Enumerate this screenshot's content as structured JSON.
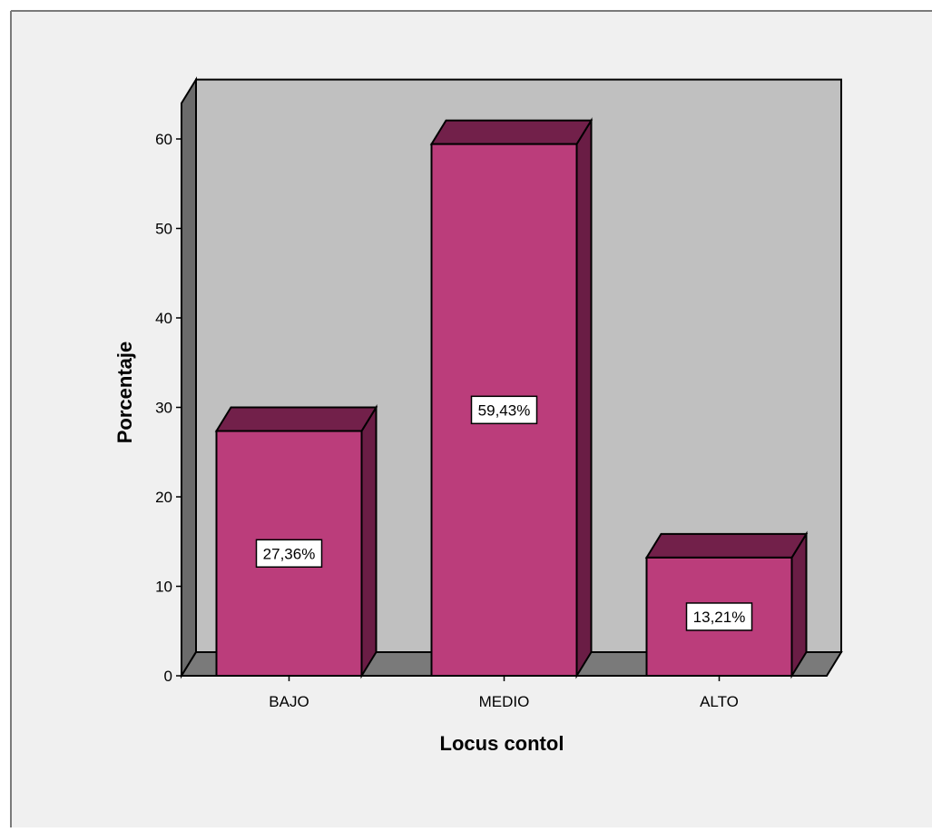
{
  "chart_data": {
    "type": "bar",
    "title": "",
    "xlabel": "Locus contol",
    "ylabel": "Porcentaje",
    "categories": [
      "BAJO",
      "MEDIO",
      "ALTO"
    ],
    "values": [
      27.36,
      59.43,
      13.21
    ],
    "data_labels": [
      "27,36%",
      "59,43%",
      "13,21%"
    ],
    "ylim": [
      0,
      64
    ],
    "yticks": [
      0,
      10,
      20,
      30,
      40,
      50,
      60
    ],
    "grid": false,
    "legend": "none",
    "style": "3d",
    "colors": {
      "page_background": "#ffffff",
      "chart_background": "#f0f0f0",
      "plot_wall": "#c0c0c0",
      "side_wall": "#6b6b6b",
      "floor": "#7a7a7a",
      "bar_front": "#bb3d7b",
      "bar_top": "#72204a",
      "bar_side": "#6a1d45",
      "outline": "#000000",
      "label_box": "#ffffff"
    }
  }
}
